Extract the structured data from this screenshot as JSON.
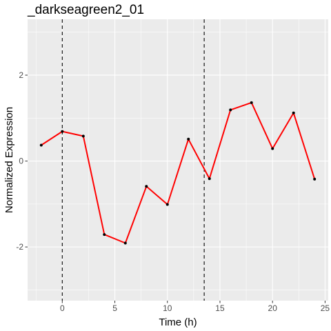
{
  "chart_data": {
    "type": "line",
    "title": "_darkseagreen2_01",
    "xlabel": "Time (h)",
    "ylabel": "Normalized Expression",
    "xlim": [
      -3.3,
      25.3
    ],
    "ylim": [
      -3.25,
      3.3
    ],
    "xticks": [
      0,
      5,
      10,
      15,
      20,
      25
    ],
    "xtick_labels": [
      "0",
      "5",
      "10",
      "15",
      "20",
      "25"
    ],
    "yticks": [
      -2,
      0,
      2
    ],
    "ytick_labels": [
      "-2",
      "0",
      "2"
    ],
    "grid": true,
    "vlines": [
      0,
      13.5
    ],
    "series": [
      {
        "x": [
          -2,
          0,
          2,
          4,
          6,
          8,
          10,
          12,
          14,
          16,
          18,
          20,
          22,
          24
        ],
        "y": [
          0.37,
          0.69,
          0.58,
          -1.71,
          -1.91,
          -0.59,
          -1.01,
          0.51,
          -0.41,
          1.19,
          1.36,
          0.29,
          1.12,
          -0.42
        ]
      }
    ],
    "line_color": "#ff0000",
    "panel_color": "#ebebeb",
    "grid_color": "#ffffff"
  }
}
